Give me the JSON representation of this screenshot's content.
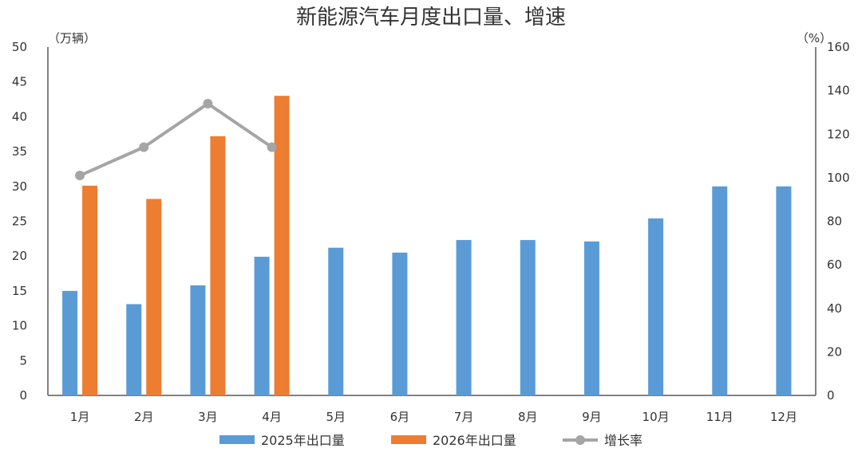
{
  "chart_data": {
    "type": "bar",
    "title": "新能源汽车月度出口量、增速",
    "ylabel": "（万辆）",
    "y2label": "（%）",
    "categories": [
      "1月",
      "2月",
      "3月",
      "4月",
      "5月",
      "6月",
      "7月",
      "8月",
      "9月",
      "10月",
      "11月",
      "12月"
    ],
    "ylim": [
      0,
      50
    ],
    "yticks": [
      0,
      5,
      10,
      15,
      20,
      25,
      30,
      35,
      40,
      45,
      50
    ],
    "y2lim": [
      0,
      160
    ],
    "y2ticks": [
      0,
      20,
      40,
      60,
      80,
      100,
      120,
      140,
      160
    ],
    "series": [
      {
        "name": "2025年出口量",
        "type": "bar",
        "axis": "left",
        "color": "#5b9bd5",
        "values": [
          15.0,
          13.1,
          15.8,
          19.9,
          21.2,
          20.5,
          22.3,
          22.3,
          22.1,
          25.4,
          30.0,
          30.0
        ]
      },
      {
        "name": "2026年出口量",
        "type": "bar",
        "axis": "left",
        "color": "#ed7d31",
        "values": [
          30.1,
          28.2,
          37.2,
          43.0,
          null,
          null,
          null,
          null,
          null,
          null,
          null,
          null
        ]
      },
      {
        "name": "增长率",
        "type": "line",
        "axis": "right",
        "color": "#a5a5a5",
        "values": [
          101,
          114,
          134,
          114,
          null,
          null,
          null,
          null,
          null,
          null,
          null,
          null
        ]
      }
    ],
    "legend_position": "bottom",
    "grid": false
  }
}
